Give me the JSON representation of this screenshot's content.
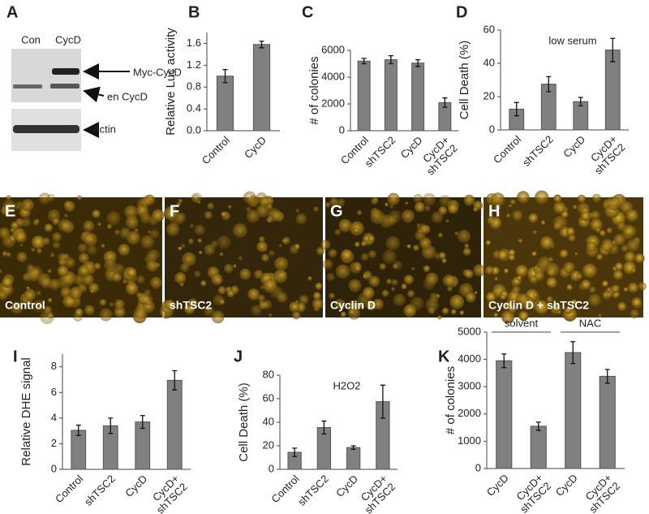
{
  "blot": {
    "label": "A",
    "lanes": [
      "Con",
      "CycD"
    ],
    "bands": [
      "Myc-CycD",
      "en CycD",
      "Actin"
    ]
  },
  "images": [
    {
      "label": "E",
      "caption": "Control"
    },
    {
      "label": "F",
      "caption": "shTSC2"
    },
    {
      "label": "G",
      "caption": "Cyclin D"
    },
    {
      "label": "H",
      "caption": "Cyclin D + shTSC2"
    }
  ],
  "chart_data": [
    {
      "type": "bar",
      "label": "B",
      "ylabel": "Relative Luc activity",
      "categories": [
        "Control",
        "CycD"
      ],
      "values": [
        1.0,
        1.58
      ],
      "errors": [
        0.12,
        0.06
      ],
      "color": "#808080",
      "ylim": [
        0,
        1.8
      ],
      "yticks": [
        {
          "value": 0,
          "label": "0.0"
        },
        0.4,
        0.8,
        1.2,
        1.6
      ]
    },
    {
      "type": "bar",
      "label": "C",
      "ylabel": "# of colonies",
      "categories": [
        "Control",
        "shTSC2",
        "CycD",
        "CycD+\nshTSC2"
      ],
      "values": [
        5200,
        5300,
        5050,
        2100
      ],
      "errors": [
        200,
        300,
        250,
        350
      ],
      "color": "#808080",
      "ylim": [
        0,
        6000
      ],
      "yticks": [
        0,
        2000,
        4000,
        6000
      ]
    },
    {
      "type": "bar",
      "label": "D",
      "ylabel": "Cell Death (%)",
      "annotation": "low serum",
      "categories": [
        "Control",
        "shTSC2",
        "CycD",
        "CycD+\nshTSC2"
      ],
      "values": [
        12.5,
        27.5,
        17,
        48
      ],
      "errors": [
        4,
        4.5,
        2.5,
        7
      ],
      "color": "#808080",
      "ylim": [
        0,
        60
      ],
      "yticks": [
        0,
        20,
        40,
        60
      ]
    },
    {
      "type": "bar",
      "label": "I",
      "ylabel": "Relative DHE signal",
      "categories": [
        "Control",
        "shTSC2",
        "CycD",
        "CycD+\nshTSC2"
      ],
      "values": [
        3.05,
        3.4,
        3.7,
        6.95
      ],
      "errors": [
        0.4,
        0.6,
        0.5,
        0.75
      ],
      "color": "#808080",
      "ylim": [
        0,
        9
      ],
      "yticks": [
        0,
        2,
        4,
        6,
        8
      ]
    },
    {
      "type": "bar",
      "label": "J",
      "ylabel": "Cell Death (%)",
      "annotation": "H2O2",
      "categories": [
        "Control",
        "shTSC2",
        "CycD",
        "CycD+\nshTSC2"
      ],
      "values": [
        14.5,
        35.5,
        18.5,
        57.5
      ],
      "errors": [
        3.5,
        5.5,
        1.5,
        14
      ],
      "color": "#808080",
      "ylim": [
        0,
        80
      ],
      "yticks": [
        0,
        20,
        40,
        60,
        80
      ]
    },
    {
      "type": "bar",
      "label": "K",
      "ylabel": "# of colonies",
      "group_labels": [
        "solvent",
        "NAC"
      ],
      "categories": [
        "CycD",
        "CycD+\nshTSC2",
        "CycD",
        "CycD+\nshTSC2"
      ],
      "values": [
        3950,
        1550,
        4250,
        3380
      ],
      "errors": [
        250,
        150,
        400,
        250
      ],
      "color": "#808080",
      "ylim": [
        0,
        5000
      ],
      "yticks": [
        0,
        1000,
        2000,
        3000,
        4000,
        5000
      ]
    }
  ]
}
